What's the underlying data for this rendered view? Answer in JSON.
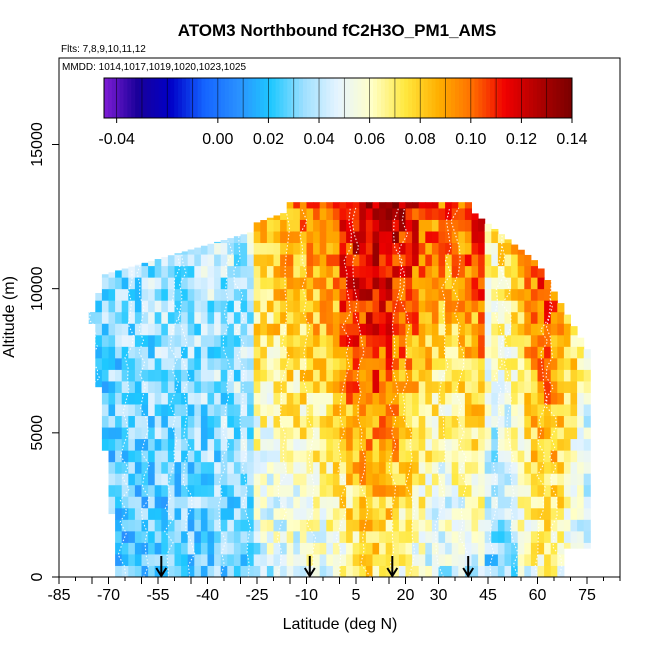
{
  "chart_data": {
    "type": "heatmap",
    "title": "ATOM3 Northbound fC2H3O_PM1_AMS",
    "flights_note": "Flts: 7,8,9,10,11,12",
    "dates_note": "MMDD: 1014,1017,1019,1020,1023,1025",
    "xlabel": "Latitude (deg N)",
    "ylabel": "Altitude (m)",
    "xlim": [
      -85,
      85
    ],
    "ylim": [
      0,
      18000
    ],
    "x_ticks": [
      -85,
      -70,
      -55,
      -40,
      -25,
      -10,
      5,
      20,
      30,
      45,
      60,
      75
    ],
    "x_tick_labels": [
      "-85",
      "-70",
      "-55",
      "-40",
      "-25",
      "-10",
      "5",
      "20",
      "30",
      "45",
      "60",
      "75"
    ],
    "y_ticks": [
      0,
      5000,
      10000,
      15000
    ],
    "y_tick_labels": [
      "0",
      "5000",
      "10000",
      "15000"
    ],
    "colorbar": {
      "min": -0.045,
      "max": 0.14,
      "ticks": [
        -0.04,
        0.0,
        0.02,
        0.04,
        0.06,
        0.08,
        0.1,
        0.12,
        0.14
      ],
      "tick_labels": [
        "-0.04",
        "0.00",
        "0.02",
        "0.04",
        "0.06",
        "0.08",
        "0.10",
        "0.12",
        "0.14"
      ],
      "colors": [
        "#7F1DD6",
        "#1A0099",
        "#0000C8",
        "#1464FF",
        "#2A90FF",
        "#1EC8FF",
        "#A0E0FF",
        "#E6F4FF",
        "#FFFFC8",
        "#FFE840",
        "#FFB000",
        "#FF7000",
        "#F00000",
        "#B00000",
        "#7A0000"
      ]
    },
    "arrow_latitudes": [
      -54,
      -9,
      16,
      39
    ],
    "profiles_note": "Gridded fC2H3O values vs latitude and altitude with white flight-track points",
    "grid": false,
    "legend": "colorbar-top"
  }
}
